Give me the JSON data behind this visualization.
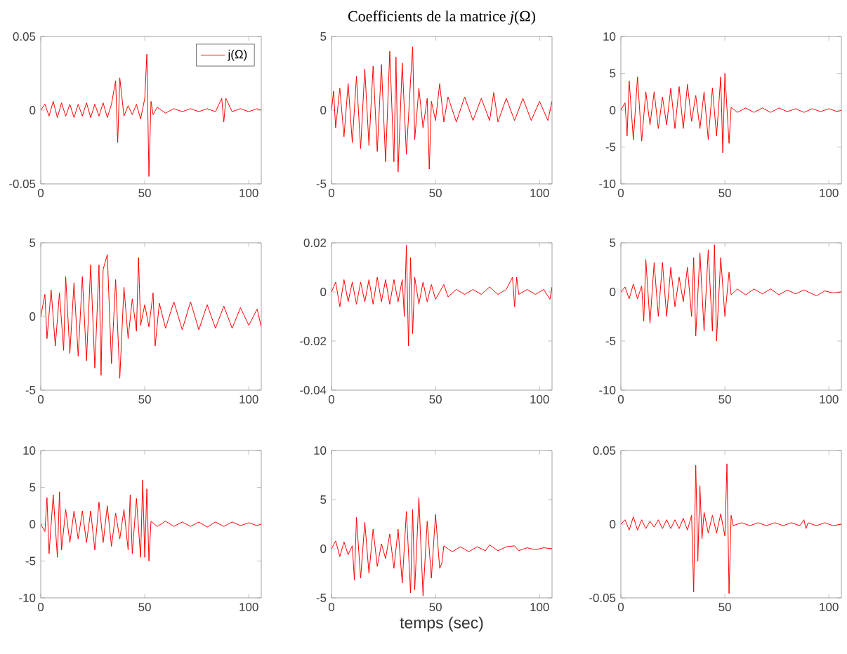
{
  "chart_data": [
    {
      "type": "line",
      "xlim": [
        0,
        106
      ],
      "xticks": [
        0,
        50,
        100
      ],
      "ylim": [
        -0.05,
        0.05
      ],
      "yticks": [
        -0.05,
        0,
        0.05
      ],
      "legend": "top right",
      "series": [
        {
          "name": "j(Ω)",
          "color": "#ff0000",
          "x": [
            0,
            2,
            4,
            6,
            8,
            10,
            12,
            14,
            16,
            18,
            20,
            22,
            24,
            26,
            28,
            30,
            32,
            34,
            36,
            37,
            38,
            40,
            42,
            44,
            46,
            48,
            50,
            51,
            52,
            53,
            54,
            56,
            60,
            64,
            68,
            72,
            76,
            80,
            84,
            87,
            88,
            89,
            92,
            96,
            100,
            104,
            106
          ],
          "values": [
            0,
            0.004,
            -0.004,
            0.006,
            -0.005,
            0.005,
            -0.004,
            0.004,
            -0.005,
            0.004,
            -0.004,
            0.005,
            -0.005,
            0.004,
            -0.004,
            0.005,
            -0.005,
            0.004,
            0.02,
            -0.022,
            0.022,
            -0.004,
            0.003,
            -0.003,
            0.004,
            -0.006,
            0.008,
            0.038,
            -0.045,
            0.006,
            -0.003,
            0.002,
            -0.002,
            0.001,
            -0.001,
            0.001,
            -0.001,
            0.001,
            -0.001,
            0.008,
            -0.008,
            0.008,
            -0.001,
            0.001,
            -0.001,
            0.001,
            0
          ]
        }
      ]
    },
    {
      "type": "line",
      "title": "Coefficients de la matrice *j*(Ω)",
      "xlim": [
        0,
        106
      ],
      "xticks": [
        0,
        50,
        100
      ],
      "ylim": [
        -5,
        5
      ],
      "yticks": [
        -5,
        0,
        5
      ],
      "series": [
        {
          "color": "#ff0000",
          "x": [
            0,
            1,
            2,
            4,
            6,
            8,
            10,
            12,
            14,
            16,
            18,
            20,
            22,
            24,
            26,
            28,
            30,
            31,
            32,
            34,
            36,
            38,
            39,
            40,
            42,
            44,
            46,
            47,
            48,
            50,
            52,
            54,
            56,
            60,
            64,
            68,
            72,
            76,
            78,
            80,
            84,
            88,
            92,
            96,
            100,
            104,
            106
          ],
          "values": [
            0,
            1.3,
            -1.2,
            1.5,
            -1.8,
            1.8,
            -2.2,
            2.3,
            -2.6,
            2.8,
            -2.4,
            3,
            -2.8,
            3.1,
            -3.5,
            4,
            -3.5,
            3.6,
            -4.2,
            3.2,
            -3,
            2,
            4.3,
            -2,
            1.5,
            -1.2,
            0.8,
            -4,
            0.6,
            -0.7,
            1.8,
            -0.8,
            0.9,
            -0.8,
            0.9,
            -0.7,
            0.8,
            -0.7,
            1.2,
            -0.8,
            0.8,
            -0.7,
            0.8,
            -0.7,
            0.6,
            -0.7,
            0.6
          ]
        }
      ]
    },
    {
      "type": "line",
      "xlim": [
        0,
        106
      ],
      "xticks": [
        0,
        50,
        100
      ],
      "ylim": [
        -10,
        10
      ],
      "yticks": [
        -10,
        -5,
        0,
        5,
        10
      ],
      "series": [
        {
          "color": "#ff0000",
          "x": [
            0,
            2,
            3,
            4,
            6,
            8,
            10,
            12,
            14,
            16,
            18,
            20,
            22,
            24,
            26,
            28,
            30,
            32,
            34,
            36,
            38,
            40,
            42,
            44,
            46,
            48,
            49,
            50,
            52,
            53,
            56,
            60,
            64,
            68,
            72,
            76,
            80,
            84,
            88,
            92,
            96,
            100,
            104,
            106
          ],
          "values": [
            0,
            1,
            -3.5,
            4,
            -4,
            4.5,
            -4.2,
            2.5,
            -2,
            2.5,
            -2.5,
            1.8,
            -2,
            3,
            -2.5,
            3.2,
            -2.5,
            3.5,
            -1.5,
            2,
            -2.5,
            2.5,
            -4,
            3,
            -3.5,
            4.5,
            -5.8,
            5,
            -4.5,
            0.4,
            -0.3,
            0.3,
            -0.3,
            0.3,
            -0.3,
            0.3,
            -0.2,
            0.2,
            -0.3,
            0.2,
            -0.2,
            0.2,
            -0.2,
            0
          ]
        }
      ]
    },
    {
      "type": "line",
      "xlim": [
        0,
        106
      ],
      "xticks": [
        0,
        50,
        100
      ],
      "ylim": [
        -5,
        5
      ],
      "yticks": [
        -5,
        0,
        5
      ],
      "series": [
        {
          "color": "#ff0000",
          "x": [
            0,
            2,
            3,
            5,
            7,
            9,
            11,
            12,
            14,
            16,
            18,
            20,
            22,
            24,
            26,
            28,
            29,
            30,
            32,
            34,
            36,
            38,
            40,
            42,
            44,
            46,
            47,
            48,
            50,
            52,
            54,
            55,
            57,
            60,
            64,
            68,
            72,
            76,
            80,
            84,
            88,
            92,
            96,
            100,
            104,
            106
          ],
          "values": [
            0,
            1.5,
            -1.5,
            1.8,
            -2,
            1.6,
            -2.3,
            2.7,
            -2.5,
            2.3,
            -2.7,
            2.7,
            -3,
            3.5,
            -3.5,
            3.5,
            -4,
            3.2,
            4.2,
            -3.2,
            2.5,
            -4.2,
            2,
            -1.5,
            1.2,
            -1,
            4,
            -0.6,
            0.8,
            -0.7,
            1.6,
            -2,
            0.9,
            -0.8,
            1,
            -0.9,
            1,
            -0.9,
            0.8,
            -0.8,
            0.7,
            -0.8,
            0.6,
            -0.6,
            0.5,
            -0.7
          ]
        }
      ]
    },
    {
      "type": "line",
      "xlim": [
        0,
        106
      ],
      "xticks": [
        0,
        50,
        100
      ],
      "ylim": [
        -0.04,
        0.02
      ],
      "yticks": [
        -0.04,
        -0.02,
        0,
        0.02
      ],
      "series": [
        {
          "color": "#ff0000",
          "x": [
            0,
            2,
            4,
            6,
            8,
            10,
            12,
            14,
            16,
            18,
            20,
            22,
            24,
            26,
            28,
            30,
            32,
            34,
            35,
            36,
            37,
            38,
            39,
            40,
            42,
            44,
            46,
            48,
            50,
            54,
            56,
            60,
            64,
            68,
            72,
            76,
            80,
            84,
            87,
            88,
            89,
            90,
            94,
            98,
            102,
            105,
            106
          ],
          "values": [
            0,
            0.004,
            -0.006,
            0.005,
            -0.004,
            0.004,
            -0.005,
            0.004,
            -0.004,
            0.005,
            -0.005,
            0.006,
            -0.004,
            0.005,
            -0.005,
            0.005,
            -0.004,
            0.005,
            -0.01,
            0.019,
            -0.022,
            0.014,
            -0.017,
            0.006,
            -0.005,
            0.004,
            -0.004,
            0.003,
            -0.003,
            0.003,
            -0.002,
            0.001,
            -0.001,
            0.001,
            -0.001,
            0.002,
            -0.001,
            0.001,
            0.006,
            -0.006,
            0.006,
            -0.001,
            0.001,
            -0.001,
            0.001,
            -0.003,
            0.002
          ]
        }
      ]
    },
    {
      "type": "line",
      "xlim": [
        0,
        106
      ],
      "xticks": [
        0,
        50,
        100
      ],
      "ylim": [
        -10,
        5
      ],
      "yticks": [
        -10,
        -5,
        0,
        5
      ],
      "series": [
        {
          "color": "#ff0000",
          "x": [
            0,
            2,
            4,
            6,
            8,
            10,
            11,
            12,
            14,
            16,
            18,
            20,
            22,
            24,
            26,
            28,
            30,
            32,
            34,
            35,
            36,
            38,
            40,
            42,
            44,
            45,
            46,
            48,
            50,
            52,
            53,
            56,
            60,
            64,
            68,
            72,
            76,
            80,
            84,
            88,
            92,
            94,
            98,
            102,
            106
          ],
          "values": [
            0,
            0.5,
            -0.7,
            0.8,
            -0.7,
            0.6,
            -3,
            3.3,
            -3.2,
            3,
            -2.5,
            3,
            -2.5,
            2.5,
            -1.5,
            1.5,
            -1,
            2.5,
            -2.5,
            3.5,
            -4.5,
            4,
            -4,
            4.3,
            -4,
            4.8,
            -5,
            3.5,
            -2.5,
            2,
            -0.3,
            0.3,
            -0.3,
            0.3,
            -0.2,
            0.3,
            -0.3,
            0.2,
            -0.2,
            0.2,
            -0.2,
            -0.4,
            0.1,
            -0.1,
            0
          ]
        }
      ]
    },
    {
      "type": "line",
      "xlim": [
        0,
        106
      ],
      "xticks": [
        0,
        50,
        100
      ],
      "ylim": [
        -10,
        10
      ],
      "yticks": [
        -10,
        -5,
        0,
        5,
        10
      ],
      "series": [
        {
          "color": "#ff0000",
          "x": [
            0,
            2,
            3,
            4,
            6,
            8,
            9,
            10,
            12,
            14,
            16,
            18,
            20,
            22,
            24,
            26,
            28,
            30,
            32,
            34,
            36,
            38,
            40,
            42,
            43,
            44,
            46,
            48,
            49,
            50,
            51,
            52,
            53,
            56,
            60,
            64,
            68,
            72,
            76,
            80,
            84,
            88,
            92,
            96,
            100,
            104,
            106
          ],
          "values": [
            0,
            -1,
            3.6,
            -4,
            4,
            -4.5,
            4.4,
            -3.5,
            2,
            -2.5,
            1.8,
            -2,
            1.8,
            -2.5,
            1.8,
            -3.5,
            3,
            -2.5,
            2.5,
            -3,
            1.5,
            -2,
            2,
            -3.5,
            4,
            -4,
            3.5,
            -4.5,
            6,
            -4.5,
            4.8,
            -5,
            0.4,
            -0.3,
            0.4,
            -0.3,
            0.3,
            -0.3,
            0.3,
            -0.4,
            0.3,
            -0.3,
            0.3,
            -0.2,
            0.2,
            -0.2,
            0
          ]
        }
      ]
    },
    {
      "type": "line",
      "xlabel": "temps (sec)",
      "xlim": [
        0,
        106
      ],
      "xticks": [
        0,
        50,
        100
      ],
      "ylim": [
        -5,
        10
      ],
      "yticks": [
        -5,
        0,
        5,
        10
      ],
      "series": [
        {
          "color": "#ff0000",
          "x": [
            0,
            2,
            4,
            6,
            8,
            10,
            11,
            12,
            14,
            16,
            18,
            20,
            22,
            24,
            26,
            28,
            30,
            32,
            34,
            36,
            38,
            39,
            40,
            42,
            44,
            46,
            48,
            50,
            52,
            53,
            54,
            58,
            62,
            66,
            70,
            74,
            76,
            80,
            84,
            88,
            90,
            94,
            98,
            102,
            106
          ],
          "values": [
            0,
            0.8,
            -0.8,
            0.7,
            -0.6,
            0.3,
            -3.2,
            3.2,
            -3,
            2.7,
            -2.5,
            2,
            -1.8,
            0.5,
            -1,
            1.5,
            -2,
            2,
            -3.5,
            3.8,
            -4.5,
            4,
            -4.2,
            5.2,
            -4.8,
            2.8,
            -3,
            3.5,
            -2,
            -1.5,
            0.3,
            -0.3,
            0.2,
            -0.3,
            0.2,
            -0.2,
            0.4,
            -0.2,
            0.2,
            0.3,
            -0.2,
            0.1,
            -0.1,
            0.1,
            0
          ]
        }
      ]
    },
    {
      "type": "line",
      "xlim": [
        0,
        106
      ],
      "xticks": [
        0,
        50,
        100
      ],
      "ylim": [
        -0.05,
        0.05
      ],
      "yticks": [
        -0.05,
        0,
        0.05
      ],
      "series": [
        {
          "color": "#ff0000",
          "x": [
            0,
            2,
            4,
            6,
            8,
            10,
            12,
            14,
            16,
            18,
            20,
            22,
            24,
            26,
            28,
            30,
            32,
            34,
            35,
            36,
            37,
            38,
            39,
            40,
            42,
            44,
            46,
            48,
            50,
            51,
            52,
            53,
            54,
            58,
            62,
            66,
            70,
            74,
            78,
            82,
            86,
            88,
            89,
            90,
            94,
            98,
            102,
            106
          ],
          "values": [
            0,
            0.003,
            -0.004,
            0.005,
            -0.004,
            0.003,
            -0.003,
            0.002,
            -0.002,
            0.003,
            -0.003,
            0.003,
            -0.003,
            0.003,
            -0.003,
            0.004,
            -0.004,
            0.006,
            -0.046,
            0.04,
            -0.025,
            0.026,
            -0.01,
            0.008,
            -0.006,
            0.006,
            -0.006,
            0.007,
            -0.008,
            0.041,
            -0.047,
            0.006,
            -0.001,
            0.001,
            -0.001,
            0.001,
            -0.001,
            0.001,
            -0.001,
            0.001,
            -0.001,
            0.003,
            -0.003,
            0.001,
            -0.001,
            0.001,
            -0.001,
            0
          ]
        }
      ]
    }
  ]
}
